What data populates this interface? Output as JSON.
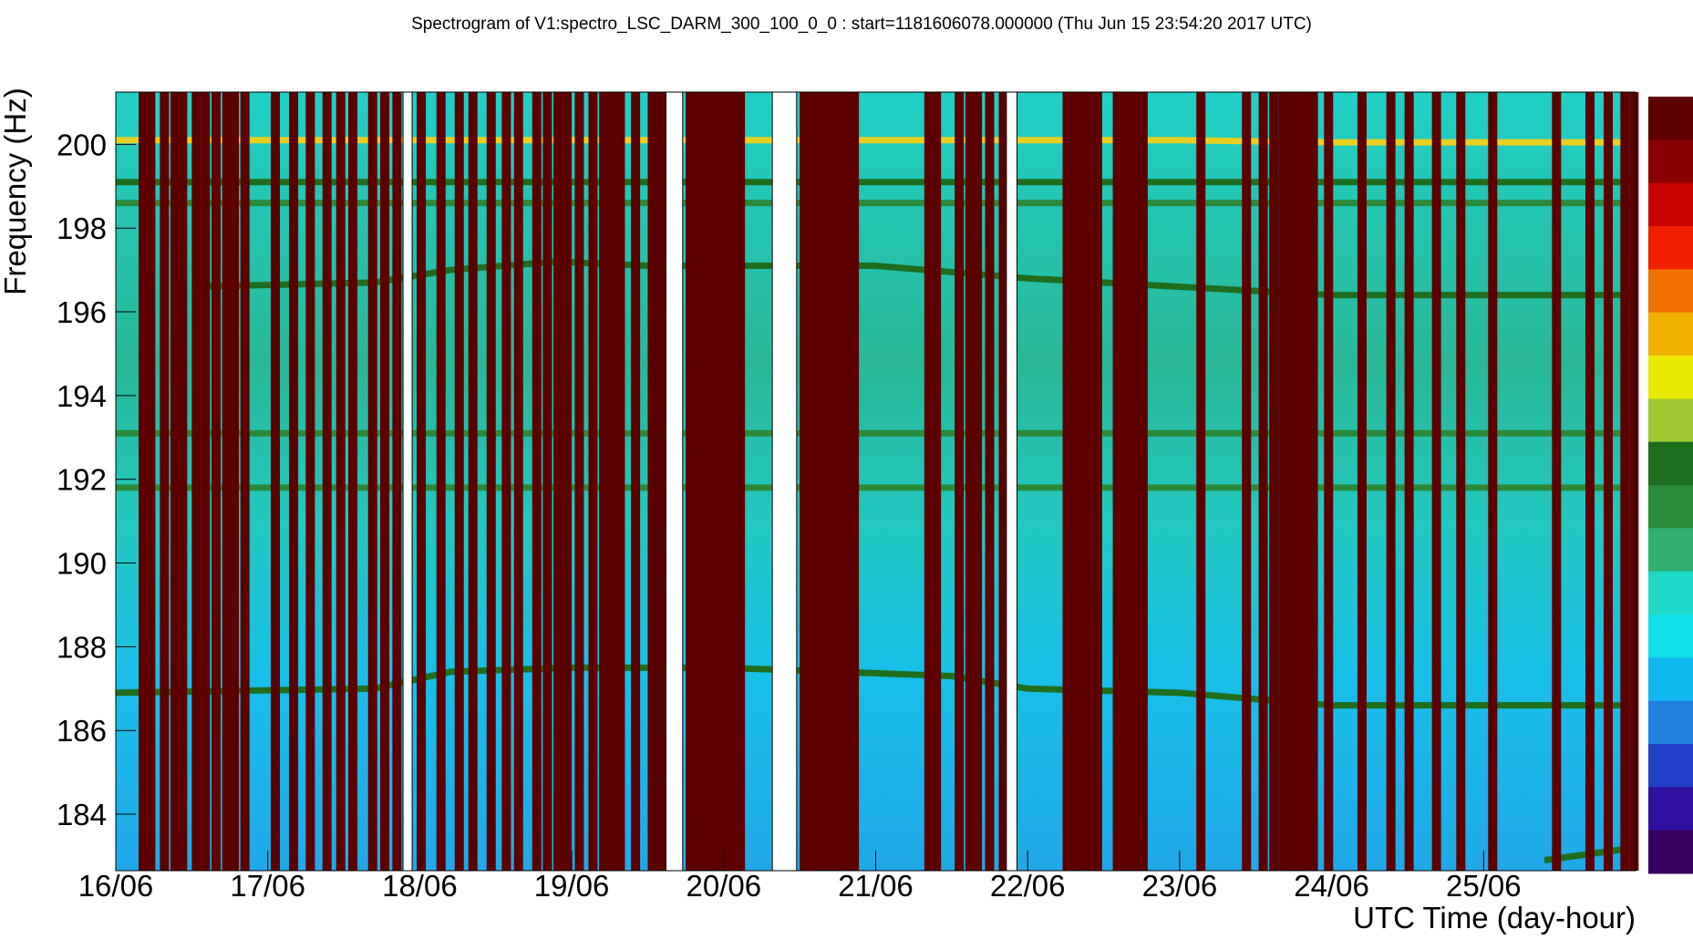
{
  "chart_data": {
    "type": "spectrogram",
    "title": "Spectrogram of V1:spectro_LSC_DARM_300_100_0_0 : start=1181606078.000000 (Thu Jun 15 23:54:20 2017 UTC)",
    "xlabel": "UTC Time (day-hour)",
    "ylabel": "Frequency (Hz)",
    "xlim": [
      16,
      26.0
    ],
    "xticks": [
      {
        "value": 16,
        "label": "16/06"
      },
      {
        "value": 17,
        "label": "17/06"
      },
      {
        "value": 18,
        "label": "18/06"
      },
      {
        "value": 19,
        "label": "19/06"
      },
      {
        "value": 20,
        "label": "20/06"
      },
      {
        "value": 21,
        "label": "21/06"
      },
      {
        "value": 22,
        "label": "22/06"
      },
      {
        "value": 23,
        "label": "23/06"
      },
      {
        "value": 24,
        "label": "24/06"
      },
      {
        "value": 25,
        "label": "25/06"
      }
    ],
    "ylim": [
      182.65,
      201.25
    ],
    "yticks": [
      184,
      186,
      188,
      190,
      192,
      194,
      196,
      198,
      200
    ],
    "lines": [
      {
        "color": "#e8d020",
        "x": [
          16,
          17,
          18,
          19,
          20,
          21,
          22,
          23,
          24,
          25,
          26
        ],
        "values": [
          200.1,
          200.1,
          200.1,
          200.1,
          200.1,
          200.1,
          200.1,
          200.1,
          200.05,
          200.05,
          200.05
        ]
      },
      {
        "color": "#1e6e1e",
        "x": [
          16,
          26
        ],
        "values": [
          199.1,
          199.1
        ]
      },
      {
        "color": "#2a8a3a",
        "x": [
          16,
          26
        ],
        "values": [
          198.6,
          198.6
        ]
      },
      {
        "color": "#1e6e1e",
        "x": [
          16.5,
          17.7,
          18.2,
          18.9,
          19.5,
          21,
          22,
          23,
          24,
          26
        ],
        "values": [
          196.6,
          196.7,
          197.0,
          197.2,
          197.1,
          197.1,
          196.8,
          196.6,
          196.4,
          196.4
        ]
      },
      {
        "color": "#2a8a3a",
        "x": [
          16,
          26
        ],
        "values": [
          193.1,
          193.1
        ]
      },
      {
        "color": "#2a8a3a",
        "x": [
          16,
          26
        ],
        "values": [
          191.8,
          191.8
        ]
      },
      {
        "color": "#1e6e1e",
        "x": [
          16,
          17.7,
          18.2,
          19,
          20,
          21.5,
          22,
          23,
          24,
          26
        ],
        "values": [
          186.9,
          187.0,
          187.4,
          187.5,
          187.5,
          187.3,
          187.0,
          186.9,
          186.6,
          186.6
        ]
      },
      {
        "color": "#1e6e1e",
        "x": [
          25.4,
          26
        ],
        "values": [
          182.9,
          183.2
        ]
      }
    ],
    "saturated_color": "#5c0000",
    "saturated_width": 0.06,
    "saturated_x": [
      16.15,
      16.2,
      16.29,
      16.36,
      16.41,
      16.5,
      16.56,
      16.63,
      16.7,
      16.75,
      16.82,
      17.02,
      17.14,
      17.25,
      17.36,
      17.45,
      17.53,
      17.66,
      17.74,
      17.82,
      17.98,
      18.11,
      18.23,
      18.32,
      18.44,
      18.54,
      18.62,
      18.74,
      18.81,
      18.88,
      18.94,
      19.02,
      19.11,
      19.18,
      19.23,
      19.29,
      19.39,
      19.5,
      19.56,
      21.32,
      21.37,
      21.52,
      21.59,
      21.64,
      21.72,
      21.81,
      23.11,
      23.41,
      23.52,
      23.59,
      23.65,
      23.7,
      23.75,
      23.8,
      23.85,
      23.95,
      24.17,
      24.36,
      24.48,
      24.66,
      24.82,
      25.03,
      25.45,
      25.67,
      25.79,
      25.9,
      25.96
    ],
    "saturated_blocks": [
      [
        19.75,
        20.14
      ],
      [
        20.5,
        20.89
      ],
      [
        22.23,
        22.49
      ],
      [
        22.56,
        22.79
      ]
    ],
    "gaps": [
      [
        17.89,
        17.95
      ],
      [
        19.62,
        19.73
      ],
      [
        20.32,
        20.48
      ],
      [
        21.86,
        21.93
      ]
    ],
    "colorbar": [
      "#5c0000",
      "#8a0000",
      "#c80000",
      "#f02000",
      "#f07000",
      "#f0b000",
      "#e8e800",
      "#a0c830",
      "#1e6e1e",
      "#2a8a3a",
      "#30b070",
      "#20d8c8",
      "#10e0e8",
      "#10b8f0",
      "#2080e0",
      "#2040c8",
      "#3010a0",
      "#3a0060"
    ]
  }
}
